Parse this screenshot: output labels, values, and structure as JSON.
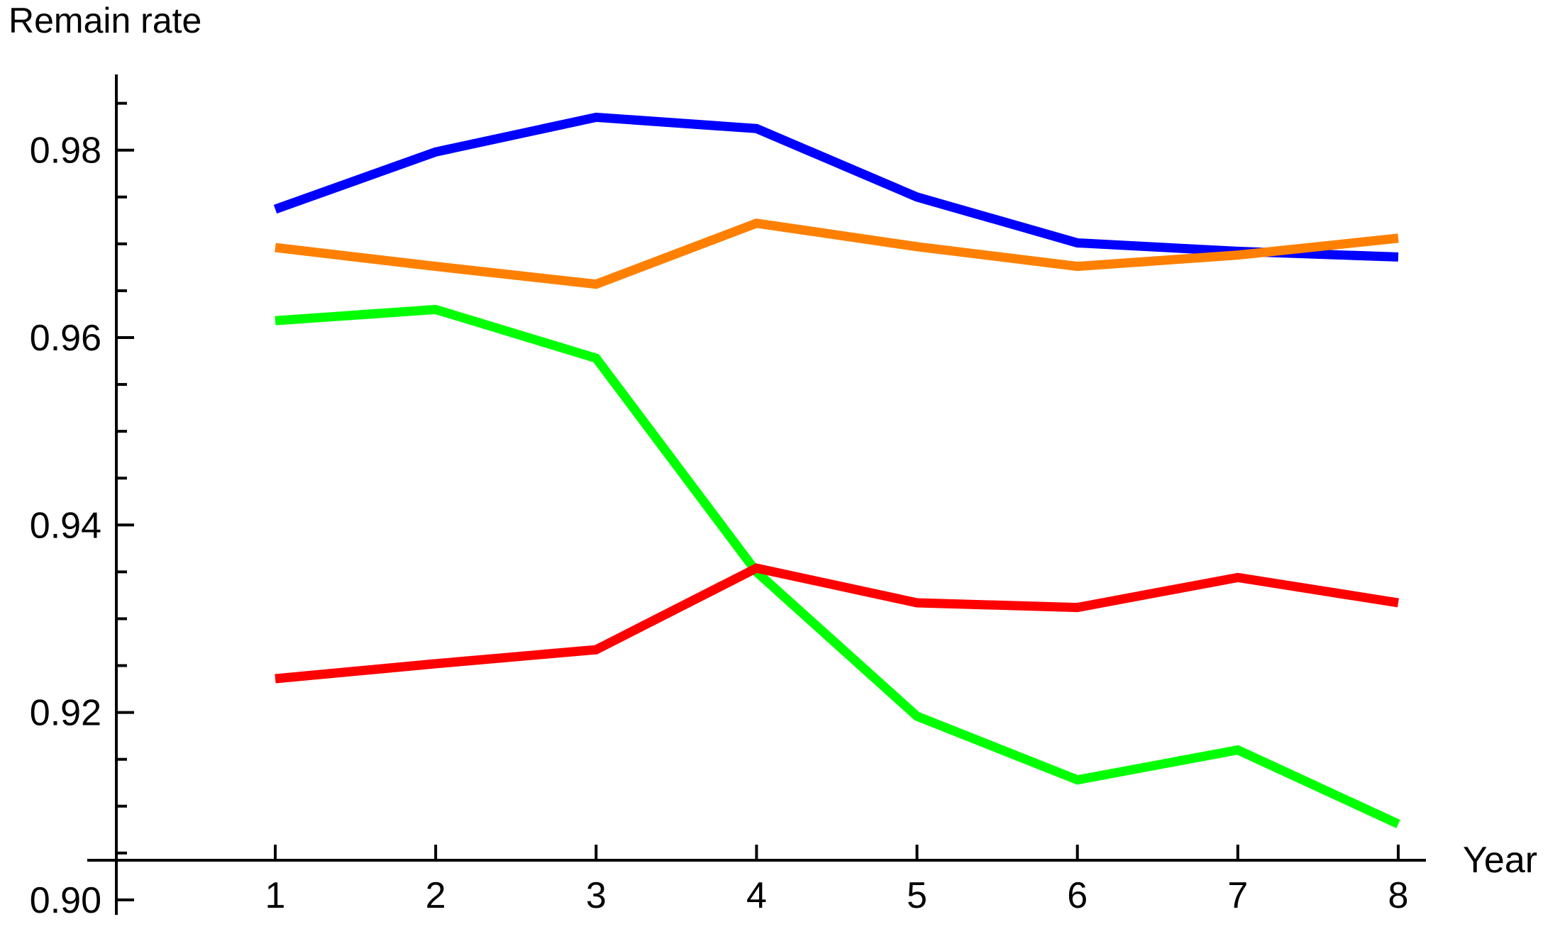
{
  "title": "Remain rate",
  "x_axis_label": "Year",
  "chart_data": {
    "type": "line",
    "title": "Remain rate",
    "xlabel": "Year",
    "ylabel": "",
    "x": [
      1,
      2,
      3,
      4,
      5,
      6,
      7,
      8
    ],
    "series": [
      {
        "name": "blue-series",
        "color": "#0000FF",
        "values": [
          0.9737,
          0.9798,
          0.9835,
          0.9823,
          0.975,
          0.9701,
          0.9692,
          0.9686
        ]
      },
      {
        "name": "orange-series",
        "color": "#FF8000",
        "values": [
          0.9696,
          0.9676,
          0.9657,
          0.9722,
          0.9697,
          0.9676,
          0.9688,
          0.9706
        ]
      },
      {
        "name": "green-series",
        "color": "#00FF00",
        "values": [
          0.9618,
          0.963,
          0.9578,
          0.935,
          0.9196,
          0.9128,
          0.916,
          0.9081
        ]
      },
      {
        "name": "red-series",
        "color": "#FF0000",
        "values": [
          0.9236,
          0.9252,
          0.9267,
          0.9354,
          0.9317,
          0.9312,
          0.9344,
          0.9317
        ]
      }
    ],
    "ylim": [
      0.9,
      0.9855
    ],
    "xlim": [
      0,
      8.2
    ],
    "yticks": [
      0.9,
      0.92,
      0.94,
      0.96,
      0.98
    ],
    "ytick_labels": [
      "0.90",
      "0.92",
      "0.94",
      "0.96",
      "0.98"
    ],
    "y_minor_tick_step": 0.005,
    "xticks": [
      1,
      2,
      3,
      4,
      5,
      6,
      7,
      8
    ],
    "xtick_labels": [
      "1",
      "2",
      "3",
      "4",
      "5",
      "6",
      "7",
      "8"
    ],
    "grid": false,
    "legend": "none",
    "axis_color": "#000000"
  }
}
